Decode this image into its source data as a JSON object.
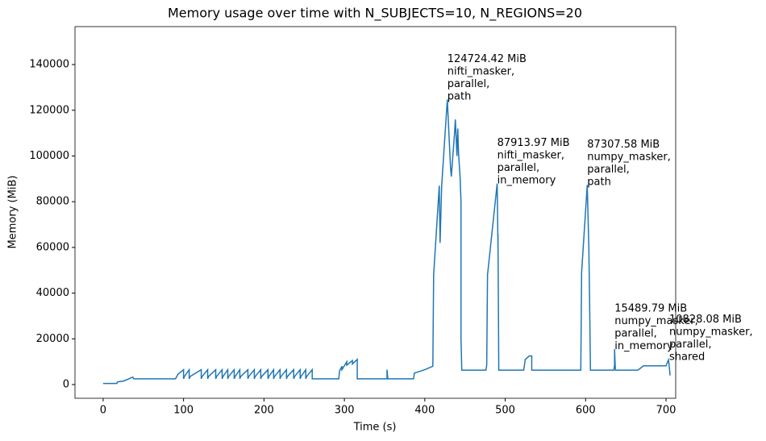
{
  "chart_data": {
    "type": "line",
    "title": "Memory usage over time with N_SUBJECTS=10, N_REGIONS=20",
    "x_label": "Time (s)",
    "y_label": "Memory (MiB)",
    "color": "#1f77b4",
    "xlim": [
      -35,
      712
    ],
    "ylim": [
      -6000,
      156600
    ],
    "xticks": [
      0,
      100,
      200,
      300,
      400,
      500,
      600,
      700
    ],
    "yticks": [
      0,
      20000,
      40000,
      60000,
      80000,
      100000,
      120000,
      140000
    ],
    "x": [
      0,
      17,
      18,
      25,
      30,
      35,
      37,
      38,
      90,
      93,
      100,
      100,
      101,
      107,
      107,
      108,
      122,
      122,
      123,
      130,
      130,
      131,
      140,
      140,
      141,
      148,
      148,
      149,
      155,
      155,
      156,
      163,
      163,
      164,
      170,
      170,
      171,
      180,
      180,
      181,
      188,
      188,
      189,
      196,
      196,
      197,
      205,
      205,
      206,
      212,
      212,
      213,
      220,
      220,
      221,
      228,
      228,
      229,
      237,
      237,
      238,
      245,
      245,
      246,
      252,
      252,
      253,
      260,
      260,
      262,
      293,
      294,
      297,
      297,
      303,
      303,
      310,
      310,
      316,
      316,
      353,
      353,
      354,
      386,
      387,
      400,
      410,
      411,
      418,
      419,
      421,
      428,
      432,
      433,
      437,
      438,
      440,
      441,
      442,
      444,
      445,
      445,
      446,
      476,
      477,
      478,
      490,
      491,
      491,
      492,
      523,
      525,
      530,
      533,
      533,
      594,
      595,
      602,
      604,
      605,
      606,
      635,
      636,
      636,
      637,
      665,
      672,
      700,
      703,
      704,
      705
    ],
    "values": [
      500,
      500,
      1200,
      1500,
      2200,
      3000,
      3200,
      2500,
      2500,
      4500,
      6500,
      2500,
      3500,
      6500,
      2500,
      3500,
      6500,
      2500,
      3500,
      6500,
      2500,
      3500,
      6500,
      2500,
      3500,
      6500,
      2500,
      3500,
      6500,
      2500,
      3500,
      6500,
      2500,
      3500,
      6500,
      2500,
      3500,
      6500,
      2500,
      3500,
      6500,
      2500,
      3500,
      6500,
      2500,
      3500,
      6500,
      2500,
      3500,
      6500,
      2500,
      3500,
      6500,
      2500,
      3500,
      6500,
      2500,
      3500,
      6500,
      2500,
      3500,
      6500,
      2500,
      3500,
      6500,
      2500,
      3500,
      6500,
      2500,
      2500,
      2500,
      6000,
      8000,
      6500,
      10000,
      8500,
      10500,
      9000,
      11000,
      2500,
      2500,
      6500,
      2500,
      2500,
      5000,
      6500,
      8000,
      48000,
      87000,
      62000,
      87000,
      124724,
      95000,
      91000,
      110000,
      116000,
      100000,
      112000,
      101000,
      90000,
      80000,
      20000,
      6300,
      6300,
      8500,
      48000,
      87914,
      60000,
      66000,
      6300,
      6300,
      11000,
      12500,
      12500,
      6300,
      6300,
      49000,
      87308,
      60000,
      35000,
      6300,
      6300,
      8500,
      15490,
      6300,
      6300,
      8200,
      8200,
      10828,
      8000,
      4000
    ],
    "annotations": [
      {
        "x": 428,
        "y": 124724.42,
        "lines": [
          "124724.42 MiB",
          "nifti_masker,",
          "parallel,",
          "path"
        ]
      },
      {
        "x": 490,
        "y": 87913.97,
        "lines": [
          "87913.97 MiB",
          "nifti_masker,",
          "parallel,",
          "in_memory"
        ]
      },
      {
        "x": 602,
        "y": 87307.58,
        "lines": [
          "87307.58 MiB",
          "numpy_masker,",
          "parallel,",
          "path"
        ]
      },
      {
        "x": 636,
        "y": 15489.79,
        "lines": [
          "15489.79 MiB",
          "numpy_masker,",
          "parallel,",
          "in_memory"
        ]
      },
      {
        "x": 704,
        "y": 10828.08,
        "lines": [
          "10828.08 MiB",
          "numpy_masker,",
          "parallel,",
          "shared"
        ]
      }
    ]
  }
}
